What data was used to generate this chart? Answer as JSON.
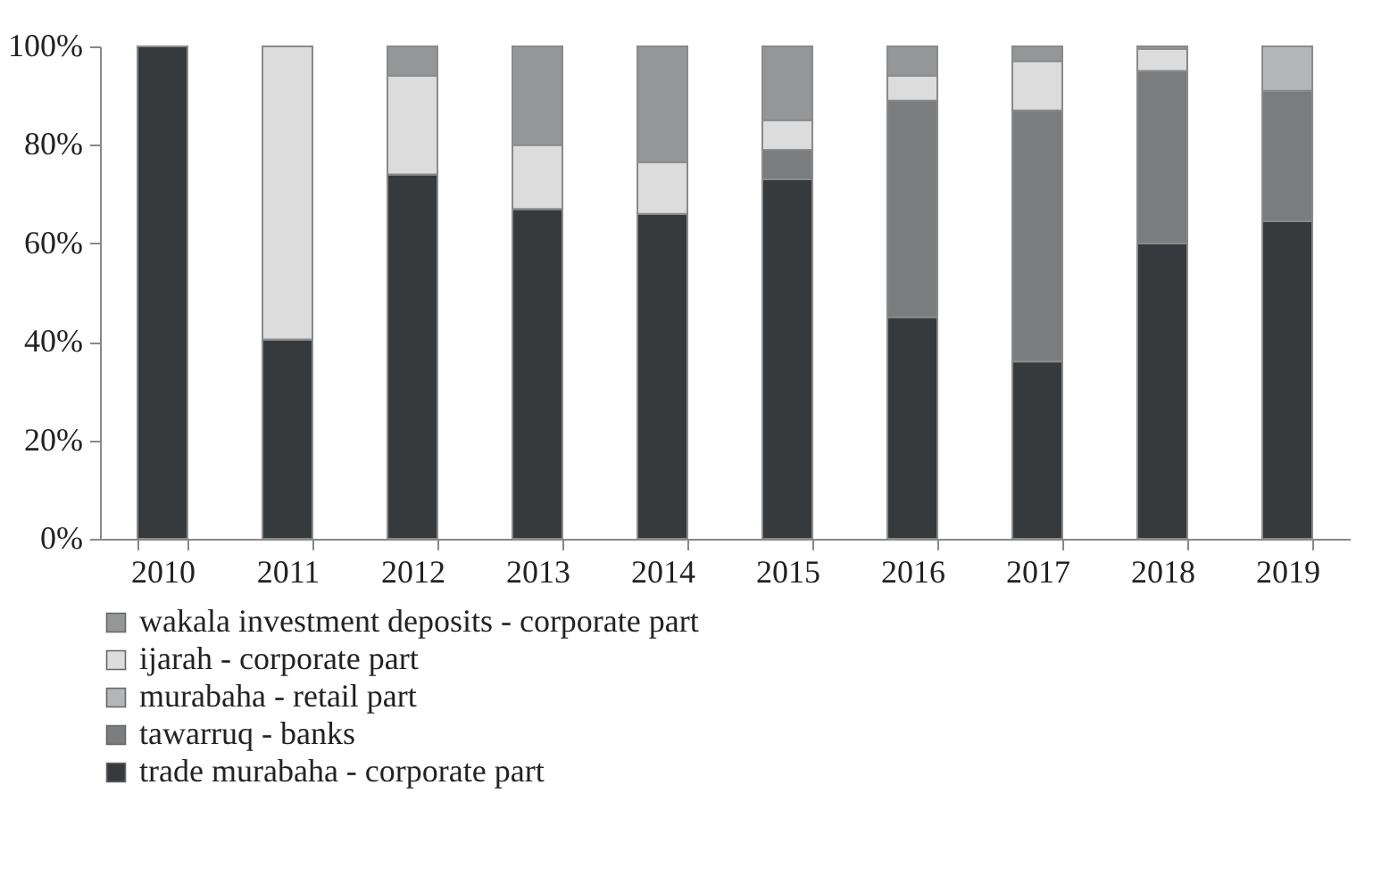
{
  "chart_data": {
    "type": "bar",
    "stacked": true,
    "categories": [
      "2010",
      "2011",
      "2012",
      "2013",
      "2014",
      "2015",
      "2016",
      "2017",
      "2018",
      "2019"
    ],
    "series": [
      {
        "name": "trade murabaha - corporate part",
        "color": "#373a3c",
        "values": [
          100,
          40.5,
          74,
          67,
          66,
          73,
          45,
          36,
          60,
          64.5
        ]
      },
      {
        "name": "tawarruq - banks",
        "color": "#7a7c7e",
        "values": [
          0,
          0,
          0,
          0,
          0,
          6,
          44,
          51,
          35,
          26.5
        ]
      },
      {
        "name": "murabaha - retail part",
        "color": "#b4b5b6",
        "values": [
          0,
          0,
          0,
          0,
          0,
          0,
          0,
          0,
          0,
          9
        ]
      },
      {
        "name": "ijarah - corporate part",
        "color": "#dcdcdc",
        "values": [
          0,
          59.5,
          20,
          13,
          10.5,
          6,
          5,
          10,
          4.5,
          0
        ]
      },
      {
        "name": "wakala investment deposits - corporate part",
        "color": "#959697",
        "values": [
          0,
          0,
          6,
          20,
          23.5,
          15,
          6,
          3,
          0.5,
          0
        ]
      }
    ],
    "ylim": [
      0,
      100
    ],
    "yticks": [
      {
        "value": 0,
        "label": "0%"
      },
      {
        "value": 20,
        "label": "20%"
      },
      {
        "value": 40,
        "label": "40%"
      },
      {
        "value": 60,
        "label": "60%"
      },
      {
        "value": 80,
        "label": "80%"
      },
      {
        "value": 100,
        "label": "100%"
      }
    ],
    "grid": false,
    "legend": "bottom"
  }
}
